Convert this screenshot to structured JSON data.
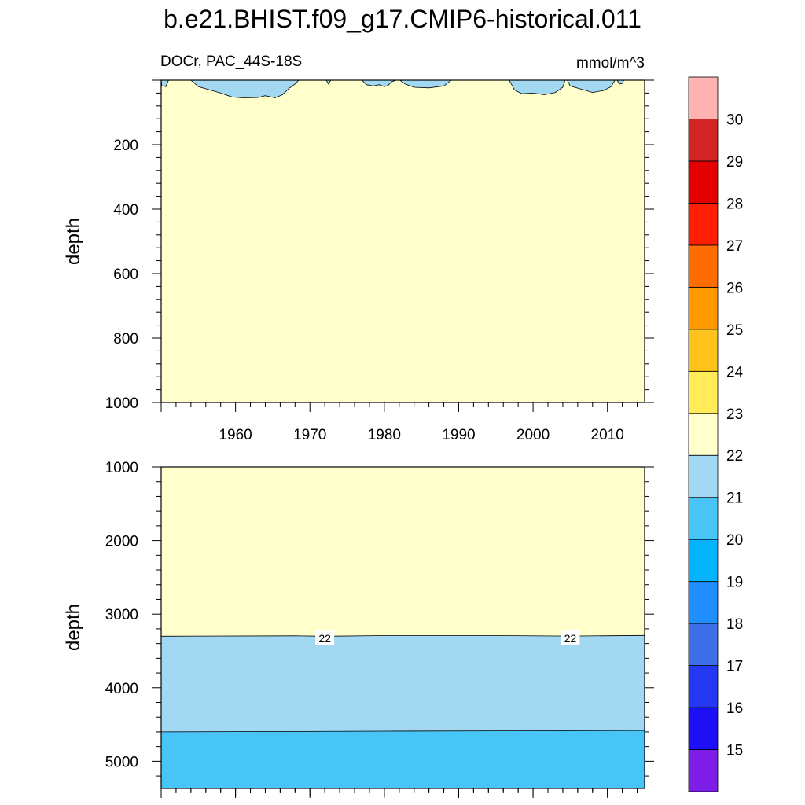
{
  "title": "b.e21.BHIST.f09_g17.CMIP6-historical.011",
  "colors": {
    "background": "#ffffff",
    "frame": "#000000",
    "contour_line": "#000000"
  },
  "chart_data": [
    {
      "type": "heatmap",
      "subtitle_left": "DOCr, PAC_44S-18S",
      "subtitle_right": "mmol/m^3",
      "ylabel": "depth",
      "x_ticks": [
        1960,
        1970,
        1980,
        1990,
        2000,
        2010
      ],
      "y_ticks": [
        200,
        400,
        600,
        800,
        1000
      ],
      "xlim": [
        1950,
        2015
      ],
      "ylim": [
        0,
        1000
      ],
      "y_inverted": true,
      "background_fill": "22-23",
      "regions": [
        {
          "level": "21-22",
          "type": "surface_band",
          "points": [
            [
              1950,
              0
            ],
            [
              1950.1,
              18
            ],
            [
              1950.6,
              20
            ],
            [
              1951,
              0
            ],
            [
              1954,
              0
            ],
            [
              1955,
              20
            ],
            [
              1956.5,
              30
            ],
            [
              1958,
              40
            ],
            [
              1959.5,
              52
            ],
            [
              1961,
              55
            ],
            [
              1963,
              54
            ],
            [
              1964,
              48
            ],
            [
              1965.3,
              55
            ],
            [
              1966.3,
              45
            ],
            [
              1967.2,
              25
            ],
            [
              1968,
              12
            ],
            [
              1968.5,
              0
            ],
            [
              1972.2,
              0
            ],
            [
              1972.5,
              12
            ],
            [
              1972.8,
              0
            ],
            [
              1977,
              0
            ],
            [
              1977.6,
              14
            ],
            [
              1978.5,
              18
            ],
            [
              1979.3,
              14
            ],
            [
              1980,
              20
            ],
            [
              1980.5,
              16
            ],
            [
              1981,
              5
            ],
            [
              1981.6,
              0
            ],
            [
              1982.1,
              0
            ],
            [
              1982.8,
              12
            ],
            [
              1984,
              22
            ],
            [
              1986,
              24
            ],
            [
              1988,
              18
            ],
            [
              1989,
              0
            ],
            [
              1996.8,
              0
            ],
            [
              1997.5,
              30
            ],
            [
              1998.5,
              42
            ],
            [
              2000,
              40
            ],
            [
              2001.5,
              45
            ],
            [
              2003,
              38
            ],
            [
              2004,
              22
            ],
            [
              2004.3,
              0
            ],
            [
              2004.6,
              0
            ],
            [
              2005,
              18
            ],
            [
              2006.5,
              28
            ],
            [
              2008,
              38
            ],
            [
              2009.5,
              32
            ],
            [
              2010.5,
              20
            ],
            [
              2011,
              0
            ],
            [
              2011.3,
              0
            ],
            [
              2011.6,
              12
            ],
            [
              2012,
              10
            ],
            [
              2012.2,
              0
            ]
          ]
        }
      ]
    },
    {
      "type": "heatmap",
      "ylabel": "depth",
      "y_ticks": [
        1000,
        2000,
        3000,
        4000,
        5000
      ],
      "xlim": [
        1950,
        2015
      ],
      "ylim": [
        1000,
        5370
      ],
      "y_inverted": true,
      "background_fill": "22-23",
      "bands": [
        {
          "level": "21-22",
          "top": [
            [
              1950,
              3300
            ],
            [
              1968,
              3295
            ],
            [
              1972,
              3300
            ],
            [
              1980,
              3292
            ],
            [
              1995,
              3292
            ],
            [
              2005,
              3298
            ],
            [
              2015,
              3290
            ]
          ],
          "bottom": [
            [
              1950,
              4600
            ],
            [
              1980,
              4590
            ],
            [
              2000,
              4585
            ],
            [
              2015,
              4580
            ]
          ]
        },
        {
          "level": "20-21",
          "top": [
            [
              1950,
              4600
            ],
            [
              1980,
              4590
            ],
            [
              2000,
              4585
            ],
            [
              2015,
              4580
            ]
          ],
          "bottom": [
            [
              1950,
              5370
            ],
            [
              2015,
              5370
            ]
          ]
        }
      ],
      "contour_labels": [
        {
          "text": "22",
          "x": 1972,
          "y": 3330
        },
        {
          "text": "22",
          "x": 2005,
          "y": 3330
        }
      ]
    }
  ],
  "colorbar": {
    "labels": [
      "15",
      "16",
      "17",
      "18",
      "19",
      "20",
      "21",
      "22",
      "23",
      "24",
      "25",
      "26",
      "27",
      "28",
      "29",
      "30"
    ],
    "colors": [
      "#7e1de6",
      "#1e10f5",
      "#2338ef",
      "#3c6fe5",
      "#1f8fff",
      "#05b3ff",
      "#48c5f7",
      "#a2d8f2",
      "#ffffcc",
      "#ffec58",
      "#ffc31c",
      "#ff9a00",
      "#ff6c00",
      "#ff1e00",
      "#e40000",
      "#d12424",
      "#ffb3b3"
    ]
  },
  "level_colors": {
    "20-21": "#48c5f7",
    "21-22": "#a2d8f2",
    "22-23": "#ffffcc"
  }
}
